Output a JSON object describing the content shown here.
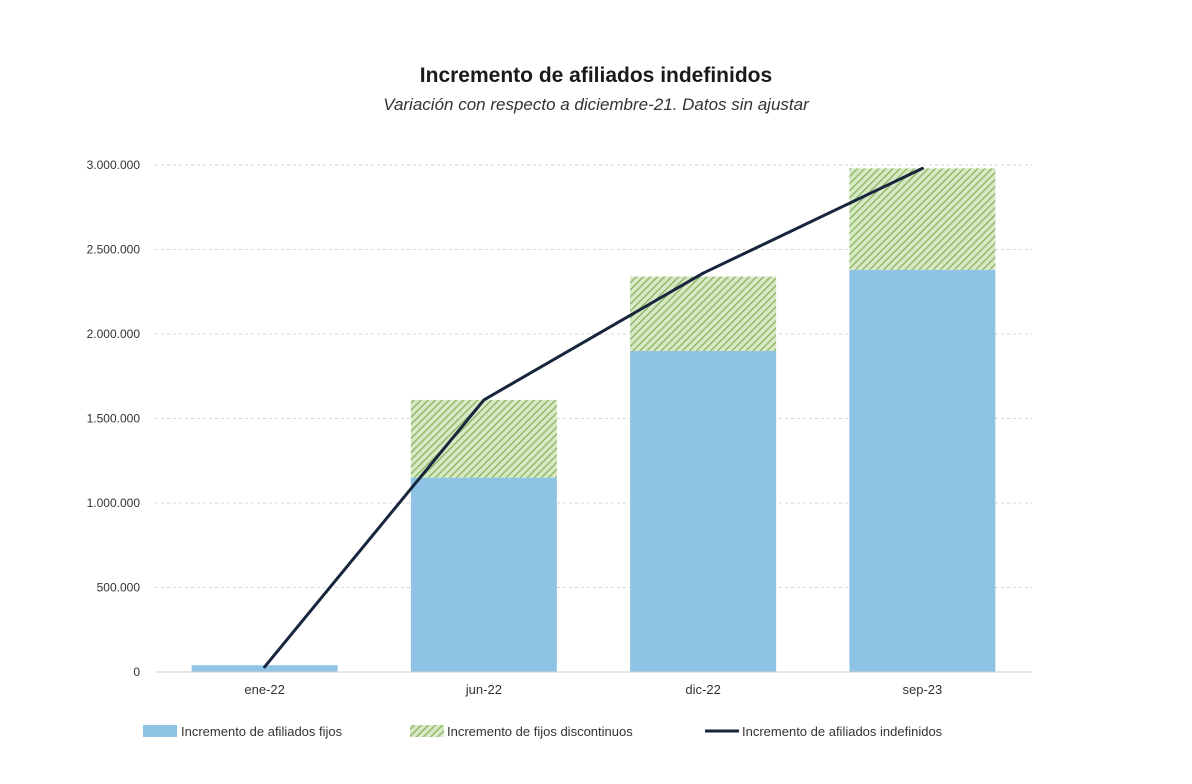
{
  "chart_data": {
    "type": "bar",
    "title": "Incremento de afiliados indefinidos",
    "subtitle": "Variación con respecto a diciembre-21. Datos sin ajustar",
    "categories": [
      "ene-22",
      "jun-22",
      "dic-22",
      "sep-23"
    ],
    "series": [
      {
        "name": "Incremento de afiliados fijos",
        "kind": "stacked-bar",
        "color": "#8fc3e6",
        "values": [
          40000,
          1150000,
          1900000,
          2380000
        ]
      },
      {
        "name": "Incremento de fijos discontinuos",
        "kind": "stacked-bar-hatched",
        "color": "#8fbd6a",
        "values": [
          0,
          460000,
          440000,
          600000
        ]
      },
      {
        "name": "Incremento de afiliados indefinidos",
        "kind": "line",
        "color": "#17253d",
        "values": [
          30000,
          1610000,
          2360000,
          2980000
        ]
      }
    ],
    "ylim": [
      0,
      3000000
    ],
    "yticks": [
      "0",
      "500.000",
      "1.000.000",
      "1.500.000",
      "2.000.000",
      "2.500.000",
      "3.000.000"
    ],
    "ytick_values": [
      0,
      500000,
      1000000,
      1500000,
      2000000,
      2500000,
      3000000
    ],
    "grid": true,
    "legend_position": "bottom"
  }
}
